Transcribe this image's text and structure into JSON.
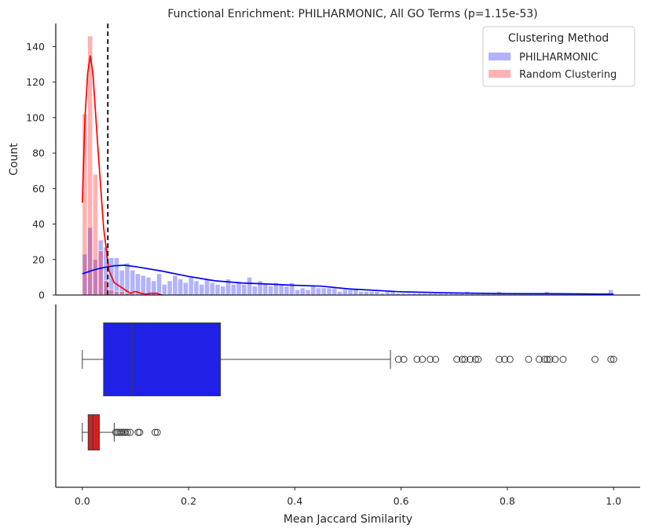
{
  "chart_data": {
    "type": "histogram+boxplot",
    "title": "Functional Enrichment: PHILHARMONIC, All GO Terms (p=1.15e-53)",
    "xlabel": "Mean Jaccard Similarity",
    "ylabel": "Count",
    "xlim": [
      -0.05,
      1.05
    ],
    "ylim": [
      0,
      153
    ],
    "x_ticks": [
      0.0,
      0.2,
      0.4,
      0.6,
      0.8,
      1.0
    ],
    "x_tick_labels": [
      "0.0",
      "0.2",
      "0.4",
      "0.6",
      "0.8",
      "1.0"
    ],
    "y_ticks": [
      0,
      20,
      40,
      60,
      80,
      100,
      120,
      140
    ],
    "y_tick_labels": [
      "0",
      "20",
      "40",
      "60",
      "80",
      "100",
      "120",
      "140"
    ],
    "threshold_line_x": 0.048,
    "legend": {
      "title": "Clustering Method",
      "placement": "top-right",
      "entries": [
        "PHILHARMONIC",
        "Random Clustering"
      ]
    },
    "bin_width": 0.01,
    "series": [
      {
        "name": "PHILHARMONIC",
        "color": "#0000ff",
        "bin_starts": [
          0.0,
          0.01,
          0.02,
          0.03,
          0.04,
          0.05,
          0.06,
          0.07,
          0.08,
          0.09,
          0.1,
          0.11,
          0.12,
          0.13,
          0.14,
          0.15,
          0.16,
          0.17,
          0.18,
          0.19,
          0.2,
          0.21,
          0.22,
          0.23,
          0.24,
          0.25,
          0.26,
          0.27,
          0.28,
          0.29,
          0.3,
          0.31,
          0.32,
          0.33,
          0.34,
          0.35,
          0.36,
          0.37,
          0.38,
          0.39,
          0.4,
          0.41,
          0.42,
          0.43,
          0.44,
          0.45,
          0.46,
          0.47,
          0.48,
          0.49,
          0.5,
          0.51,
          0.52,
          0.53,
          0.54,
          0.55,
          0.56,
          0.57,
          0.58,
          0.59,
          0.6,
          0.61,
          0.62,
          0.63,
          0.64,
          0.65,
          0.66,
          0.67,
          0.68,
          0.69,
          0.7,
          0.71,
          0.72,
          0.73,
          0.74,
          0.75,
          0.76,
          0.77,
          0.78,
          0.79,
          0.8,
          0.81,
          0.82,
          0.83,
          0.84,
          0.85,
          0.86,
          0.87,
          0.88,
          0.89,
          0.9,
          0.91,
          0.92,
          0.93,
          0.94,
          0.95,
          0.96,
          0.97,
          0.98,
          0.99
        ],
        "counts": [
          23,
          38,
          20,
          31,
          27,
          21,
          21,
          14,
          18,
          14,
          12,
          11,
          10,
          8,
          12,
          6,
          8,
          11,
          9,
          7,
          10,
          8,
          6,
          9,
          7,
          6,
          5,
          9,
          6,
          7,
          6,
          10,
          5,
          8,
          6,
          5,
          7,
          6,
          5,
          7,
          3,
          4,
          3,
          5,
          4,
          4,
          4,
          4,
          2,
          3,
          3,
          3,
          2,
          2,
          2,
          2,
          1,
          2,
          2,
          1,
          1,
          1,
          1,
          1,
          1,
          1,
          1,
          1,
          1,
          1,
          1,
          1,
          2,
          1,
          1,
          1,
          1,
          1,
          2,
          1,
          1,
          1,
          1,
          1,
          1,
          1,
          1,
          2,
          1,
          1,
          1,
          1,
          0,
          1,
          0,
          0,
          1,
          0,
          0,
          3
        ],
        "kde_x": [
          0.0,
          0.02,
          0.04,
          0.06,
          0.08,
          0.1,
          0.15,
          0.2,
          0.25,
          0.3,
          0.35,
          0.4,
          0.45,
          0.5,
          0.6,
          0.7,
          0.8,
          0.9,
          1.0
        ],
        "kde_y": [
          12,
          14,
          15.5,
          16.5,
          16.8,
          16,
          13.5,
          10.5,
          8,
          6.8,
          6.2,
          5.5,
          5,
          3.5,
          1.8,
          1.2,
          0.8,
          0.7,
          0.5
        ],
        "box": {
          "whisker_low": 0.0,
          "q1": 0.04,
          "median": 0.095,
          "q3": 0.26,
          "whisker_high": 0.58
        },
        "outliers": [
          0.595,
          0.605,
          0.63,
          0.64,
          0.655,
          0.665,
          0.705,
          0.715,
          0.72,
          0.73,
          0.74,
          0.745,
          0.785,
          0.795,
          0.805,
          0.84,
          0.86,
          0.87,
          0.875,
          0.88,
          0.89,
          0.905,
          0.965,
          0.995,
          1.0
        ]
      },
      {
        "name": "Random Clustering",
        "color": "#ff0000",
        "bin_starts": [
          0.0,
          0.01,
          0.02,
          0.03,
          0.04,
          0.05,
          0.06,
          0.07,
          0.08,
          0.09,
          0.1,
          0.11,
          0.12,
          0.13,
          0.14
        ],
        "counts": [
          102,
          146,
          68,
          25,
          8,
          3,
          2,
          2,
          1,
          1,
          0,
          1,
          0,
          1,
          1
        ],
        "kde_x": [
          0.0,
          0.005,
          0.01,
          0.015,
          0.02,
          0.03,
          0.04,
          0.05,
          0.06,
          0.07,
          0.08,
          0.09,
          0.1,
          0.11,
          0.12,
          0.13,
          0.14,
          0.15
        ],
        "kde_y": [
          52,
          100,
          125,
          135,
          125,
          80,
          38,
          14,
          7,
          5,
          3,
          1,
          2,
          1,
          0.5,
          1,
          1,
          0
        ],
        "box": {
          "whisker_low": 0.0,
          "q1": 0.011,
          "median": 0.02,
          "q3": 0.032,
          "whisker_high": 0.06
        },
        "outliers": [
          0.063,
          0.066,
          0.069,
          0.072,
          0.075,
          0.078,
          0.081,
          0.085,
          0.09,
          0.105,
          0.108,
          0.137,
          0.141
        ]
      }
    ]
  }
}
